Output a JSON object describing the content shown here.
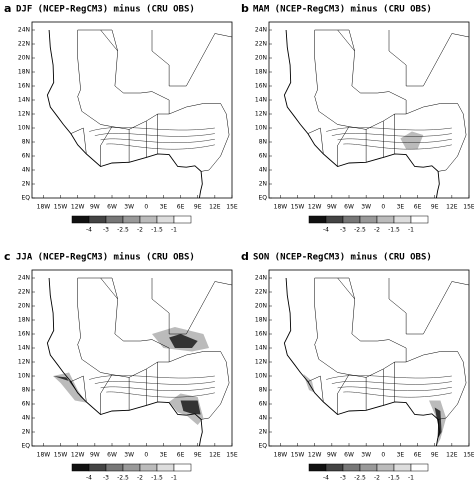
{
  "panels": [
    {
      "label": "a",
      "title": "DJF (NCEP-RegCM3) minus (CRU OBS)"
    },
    {
      "label": "b",
      "title": "MAM (NCEP-RegCM3) minus (CRU OBS)"
    },
    {
      "label": "c",
      "title": "JJA (NCEP-RegCM3) minus (CRU OBS)"
    },
    {
      "label": "d",
      "title": "SON (NCEP-RegCM3) minus (CRU OBS)"
    }
  ],
  "lat_ticks": [
    "24N",
    "22N",
    "20N",
    "18N",
    "16N",
    "14N",
    "12N",
    "10N",
    "8N",
    "6N",
    "4N",
    "2N",
    "EQ"
  ],
  "lon_ticks": [
    "18W",
    "15W",
    "12W",
    "9W",
    "6W",
    "3W",
    "0",
    "3E",
    "6E",
    "9E",
    "12E",
    "15E"
  ],
  "colorbar_labels": [
    "-4",
    "-3",
    "-2.5",
    "-2",
    "-1.5",
    "-1"
  ]
}
